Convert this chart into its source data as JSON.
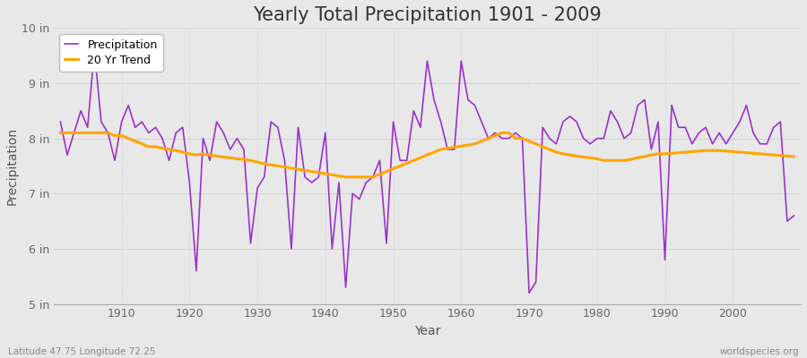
{
  "title": "Yearly Total Precipitation 1901 - 2009",
  "xlabel": "Year",
  "ylabel": "Precipitation",
  "footer_left": "Latitude 47.75 Longitude 72.25",
  "footer_right": "worldspecies.org",
  "years": [
    1901,
    1902,
    1903,
    1904,
    1905,
    1906,
    1907,
    1908,
    1909,
    1910,
    1911,
    1912,
    1913,
    1914,
    1915,
    1916,
    1917,
    1918,
    1919,
    1920,
    1921,
    1922,
    1923,
    1924,
    1925,
    1926,
    1927,
    1928,
    1929,
    1930,
    1931,
    1932,
    1933,
    1934,
    1935,
    1936,
    1937,
    1938,
    1939,
    1940,
    1941,
    1942,
    1943,
    1944,
    1945,
    1946,
    1947,
    1948,
    1949,
    1950,
    1951,
    1952,
    1953,
    1954,
    1955,
    1956,
    1957,
    1958,
    1959,
    1960,
    1961,
    1962,
    1963,
    1964,
    1965,
    1966,
    1967,
    1968,
    1969,
    1970,
    1971,
    1972,
    1973,
    1974,
    1975,
    1976,
    1977,
    1978,
    1979,
    1980,
    1981,
    1982,
    1983,
    1984,
    1985,
    1986,
    1987,
    1988,
    1989,
    1990,
    1991,
    1992,
    1993,
    1994,
    1995,
    1996,
    1997,
    1998,
    1999,
    2000,
    2001,
    2002,
    2003,
    2004,
    2005,
    2006,
    2007,
    2008,
    2009
  ],
  "precip": [
    8.3,
    7.7,
    8.1,
    8.5,
    8.2,
    9.6,
    8.3,
    8.1,
    7.6,
    8.3,
    8.6,
    8.2,
    8.3,
    8.1,
    8.2,
    8.0,
    7.6,
    8.1,
    8.2,
    7.2,
    5.6,
    8.0,
    7.6,
    8.3,
    8.1,
    7.8,
    8.0,
    7.8,
    6.1,
    7.1,
    7.3,
    8.3,
    8.2,
    7.6,
    6.0,
    8.2,
    7.3,
    7.2,
    7.3,
    8.1,
    6.0,
    7.2,
    5.3,
    7.0,
    6.9,
    7.2,
    7.3,
    7.6,
    6.1,
    8.3,
    7.6,
    7.6,
    8.5,
    8.2,
    9.4,
    8.7,
    8.3,
    7.8,
    7.8,
    9.4,
    8.7,
    8.6,
    8.3,
    8.0,
    8.1,
    8.0,
    8.0,
    8.1,
    8.0,
    5.2,
    5.4,
    8.2,
    8.0,
    7.9,
    8.3,
    8.4,
    8.3,
    8.0,
    7.9,
    8.0,
    8.0,
    8.5,
    8.3,
    8.0,
    8.1,
    8.6,
    8.7,
    7.8,
    8.3,
    5.8,
    8.6,
    8.2,
    8.2,
    7.9,
    8.1,
    8.2,
    7.9,
    8.1,
    7.9,
    8.1,
    8.3,
    8.6,
    8.1,
    7.9,
    7.9,
    8.2,
    8.3,
    6.5,
    6.6
  ],
  "trend_years": [
    1901,
    1902,
    1903,
    1904,
    1905,
    1906,
    1907,
    1908,
    1909,
    1910,
    1911,
    1912,
    1913,
    1914,
    1915,
    1916,
    1917,
    1918,
    1919,
    1920,
    1921,
    1922,
    1923,
    1924,
    1925,
    1926,
    1927,
    1928,
    1929,
    1930,
    1931,
    1932,
    1933,
    1934,
    1935,
    1936,
    1937,
    1938,
    1939,
    1940,
    1941,
    1942,
    1943,
    1944,
    1945,
    1946,
    1947,
    1948,
    1949,
    1950,
    1951,
    1952,
    1953,
    1954,
    1955,
    1956,
    1957,
    1958,
    1959,
    1960,
    1961,
    1962,
    1963,
    1964,
    1965,
    1966,
    1967,
    1968,
    1969,
    1970,
    1971,
    1972,
    1973,
    1974,
    1975,
    1976,
    1977,
    1978,
    1979,
    1980,
    1981,
    1982,
    1983,
    1984,
    1985,
    1986,
    1987,
    1988,
    1989,
    1990,
    1991,
    1992,
    1993,
    1994,
    1995,
    1996,
    1997,
    1998,
    1999,
    2000,
    2001,
    2002,
    2003,
    2004,
    2005,
    2006,
    2007,
    2008,
    2009
  ],
  "trend": [
    8.1,
    8.1,
    8.1,
    8.1,
    8.1,
    8.1,
    8.1,
    8.1,
    8.05,
    8.05,
    8.0,
    7.95,
    7.9,
    7.85,
    7.85,
    7.82,
    7.8,
    7.78,
    7.75,
    7.72,
    7.7,
    7.72,
    7.7,
    7.68,
    7.66,
    7.65,
    7.63,
    7.62,
    7.6,
    7.57,
    7.54,
    7.52,
    7.5,
    7.48,
    7.46,
    7.44,
    7.42,
    7.4,
    7.38,
    7.36,
    7.34,
    7.32,
    7.3,
    7.3,
    7.3,
    7.3,
    7.3,
    7.35,
    7.4,
    7.45,
    7.5,
    7.55,
    7.6,
    7.65,
    7.7,
    7.75,
    7.8,
    7.82,
    7.84,
    7.86,
    7.88,
    7.9,
    7.95,
    8.0,
    8.05,
    8.1,
    8.1,
    8.0,
    8.0,
    7.95,
    7.9,
    7.85,
    7.8,
    7.75,
    7.72,
    7.7,
    7.68,
    7.66,
    7.65,
    7.63,
    7.6,
    7.6,
    7.6,
    7.6,
    7.62,
    7.65,
    7.67,
    7.7,
    7.72,
    7.72,
    7.73,
    7.74,
    7.75,
    7.76,
    7.77,
    7.78,
    7.78,
    7.78,
    7.77,
    7.76,
    7.75,
    7.74,
    7.73,
    7.72,
    7.71,
    7.7,
    7.69,
    7.68,
    7.67
  ],
  "precip_color": "#9933CC",
  "trend_color": "#FFA500",
  "bg_color": "#e8e8e8",
  "plot_bg_color": "#e8e8e8",
  "ylim": [
    5.0,
    10.0
  ],
  "yticks": [
    5,
    6,
    7,
    8,
    9,
    10
  ],
  "ytick_labels": [
    "5 in",
    "6 in",
    "7 in",
    "8 in",
    "9 in",
    "10 in"
  ],
  "grid_color": "#d0d0d8",
  "title_fontsize": 15,
  "axis_fontsize": 10,
  "tick_fontsize": 9,
  "legend_fontsize": 9
}
